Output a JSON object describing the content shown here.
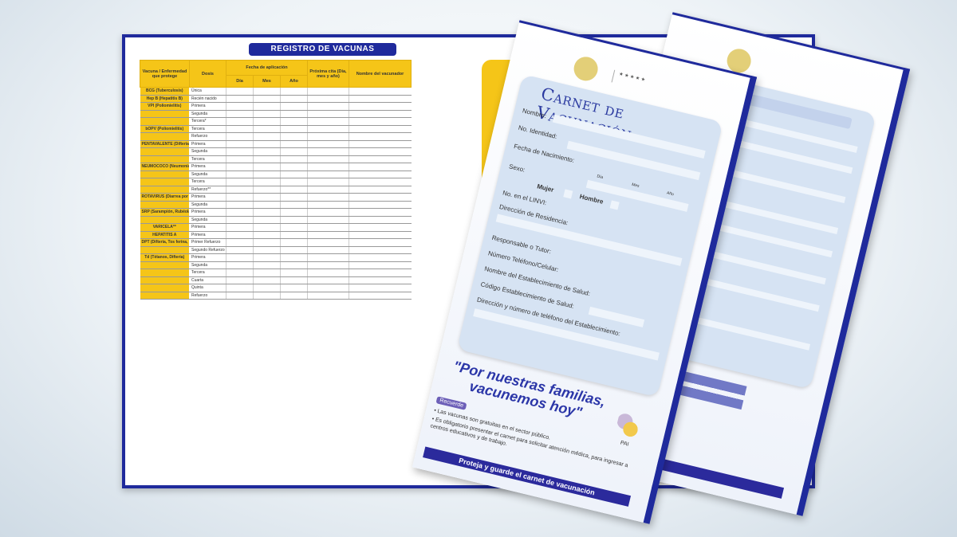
{
  "register": {
    "title": "REGISTRO DE VACUNAS APLICADAS",
    "headers": [
      "Vacuna / Enfermedad que protege",
      "Dosis",
      "Fecha de aplicación",
      "Día",
      "Mes",
      "Año",
      "Próxima cita (Día, mes y año)",
      "Nombre del vacunador"
    ],
    "rows": [
      {
        "vaccine": "BCG (Tuberculosis)",
        "dose": "Única"
      },
      {
        "vaccine": "Hep B (Hepatitis B)",
        "dose": "Recién nacido"
      },
      {
        "vaccine": "VPI (Poliomielitis)",
        "dose": "Primera"
      },
      {
        "vaccine": "",
        "dose": "Segunda"
      },
      {
        "vaccine": "",
        "dose": "Tercera*"
      },
      {
        "vaccine": "bOPV (Poliomielitis)",
        "dose": "Tercera"
      },
      {
        "vaccine": "",
        "dose": "Refuerzo"
      },
      {
        "vaccine": "PENTAVALENTE (Difteria, Tos ferina, Tétanos, Hepatitis B, Meningitis y Neumonías por Hib)",
        "dose": "Primera"
      },
      {
        "vaccine": "",
        "dose": "Segunda"
      },
      {
        "vaccine": "",
        "dose": "Tercera"
      },
      {
        "vaccine": "NEUMOCOCO (Neumonías, Meningitis)",
        "dose": "Primera"
      },
      {
        "vaccine": "",
        "dose": "Segunda"
      },
      {
        "vaccine": "",
        "dose": "Tercera"
      },
      {
        "vaccine": "",
        "dose": "Refuerzo**"
      },
      {
        "vaccine": "ROTAVIRUS (Diarrea por Rotavirus)",
        "dose": "Primera"
      },
      {
        "vaccine": "",
        "dose": "Segunda"
      },
      {
        "vaccine": "SRP (Sarampión, Rubéola, Parotiditis)",
        "dose": "Primera"
      },
      {
        "vaccine": "",
        "dose": "Segunda"
      },
      {
        "vaccine": "VARICELA**",
        "dose": "Primera"
      },
      {
        "vaccine": "HEPATITIS A",
        "dose": "Primera"
      },
      {
        "vaccine": "DPT (Difteria, Tos ferina, Tétanos)",
        "dose": "Primer Refuerzo"
      },
      {
        "vaccine": "",
        "dose": "Segundo Refuerzo"
      },
      {
        "vaccine": "Td (Tétanos, Difteria)",
        "dose": "Primera"
      },
      {
        "vaccine": "",
        "dose": "Segunda"
      },
      {
        "vaccine": "",
        "dose": "Tercera"
      },
      {
        "vaccine": "",
        "dose": "Cuarta"
      },
      {
        "vaccine": "",
        "dose": "Quinta"
      },
      {
        "vaccine": "",
        "dose": "Refuerzo"
      }
    ]
  },
  "card": {
    "title": "Carnet de Vacunación",
    "fields": {
      "name": "Nombre:",
      "id": "No. Identidad:",
      "birth": "Fecha de Nacimiento:",
      "day": "Día",
      "month": "Mes",
      "year": "Año",
      "sex": "Sexo:",
      "female": "Mujer",
      "male": "Hombre",
      "linvi": "No. en el LINVI:",
      "address": "Dirección de Residencia:",
      "guardian": "Responsable o Tutor:",
      "phone": "Número Teléfono/Celular:",
      "facility": "Nombre del Establecimiento de Salud:",
      "facility_code": "Código Establecimiento de Salud:",
      "facility_address": "Dirección y número de teléfono del Establecimiento:"
    },
    "slogan": "\"Por nuestras familias, vacunemos hoy\"",
    "reminder_label": "Recuerde",
    "reminders": [
      "• Las vacunas son gratuitas en el sector público.",
      "• Es obligatorio presentar el carnet para solicitar atención médica, para ingresar a centros educativos y de trabajo."
    ],
    "footer": "Proteja y guarde el carnet de vacunación",
    "program_logo": "PAI",
    "colors": {
      "primary": "#1f2a9c",
      "accent": "#f5c518",
      "panel": "#d6e3f3"
    }
  }
}
